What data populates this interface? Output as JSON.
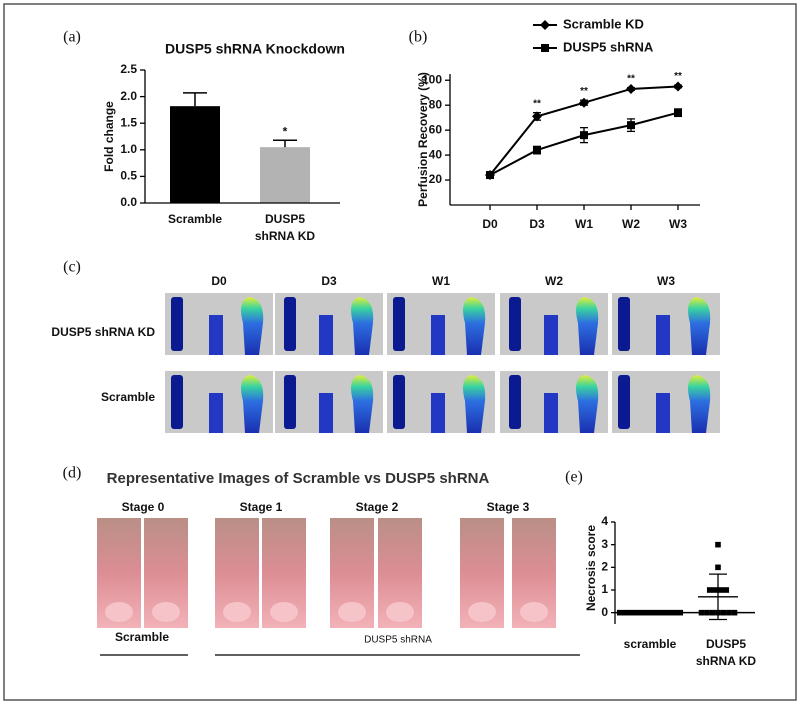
{
  "panel_labels": [
    "(a)",
    "(b)",
    "(c)",
    "(d)",
    "(e)"
  ],
  "chart_data": [
    {
      "type": "bar",
      "title": "DUSP5 shRNA Knockdown",
      "ylabel": "Fold change",
      "categories": [
        "Scramble",
        "DUSP5 shRNA KD"
      ],
      "values": [
        1.82,
        1.05
      ],
      "errors": [
        0.25,
        0.13
      ],
      "colors": [
        "#000000",
        "#b3b3b3"
      ],
      "significance": [
        null,
        "*"
      ],
      "ylim": [
        0,
        2.5
      ],
      "yticks": [
        {
          "value": 0,
          "label": "0.0"
        },
        {
          "value": 0.5,
          "label": "0.5"
        },
        {
          "value": 1,
          "label": "1.0"
        },
        {
          "value": 1.5,
          "label": "1.5"
        },
        {
          "value": 2,
          "label": "2.0"
        },
        {
          "value": 2.5,
          "label": "2.5"
        }
      ]
    },
    {
      "type": "line",
      "ylabel": "Perfusion Recovery (%)",
      "categories": [
        "D0",
        "D3",
        "W1",
        "W2",
        "W3"
      ],
      "significance": [
        null,
        "**",
        "**",
        "**",
        "**"
      ],
      "ylim": [
        0,
        105
      ],
      "yticks": [
        20,
        40,
        60,
        80,
        100
      ],
      "legend": "top",
      "series": [
        {
          "name": "Scramble KD",
          "color": "#000000",
          "marker": "diamond",
          "values": [
            24,
            71,
            82,
            93,
            95
          ],
          "errors": [
            1,
            3,
            2,
            1,
            1
          ]
        },
        {
          "name": "DUSP5 shRNA",
          "color": "#000000",
          "marker": "square",
          "values": [
            24,
            44,
            56,
            64,
            74
          ],
          "errors": [
            1,
            3,
            6,
            5,
            3
          ]
        }
      ]
    },
    {
      "type": "scatter",
      "ylabel": "Necrosis score",
      "categories": [
        "scramble",
        "DUSP5 shRNA KD"
      ],
      "ylim": [
        -0.5,
        4
      ],
      "yticks": [
        0,
        1,
        2,
        3,
        4
      ],
      "series": [
        {
          "values": [
            0,
            0,
            0,
            0,
            0,
            0,
            0,
            0,
            0,
            0,
            0,
            0
          ],
          "mean": 0,
          "sd": 0
        },
        {
          "values": [
            3,
            2,
            1,
            1,
            1,
            1,
            0,
            0,
            0,
            0,
            0,
            0,
            0
          ],
          "mean": 0.7,
          "sd": 1.0
        }
      ]
    }
  ],
  "panel_c": {
    "columns": [
      "D0",
      "D3",
      "W1",
      "W2",
      "W3"
    ],
    "rows": [
      "DUSP5 shRNA KD",
      "Scramble"
    ]
  },
  "panel_d": {
    "title": "Representative Images of Scramble vs DUSP5 shRNA",
    "stages": [
      "Stage 0",
      "Stage 1",
      "Stage 2",
      "Stage 3"
    ],
    "groups": [
      "Scramble",
      "DUSP5 shRNA"
    ]
  }
}
